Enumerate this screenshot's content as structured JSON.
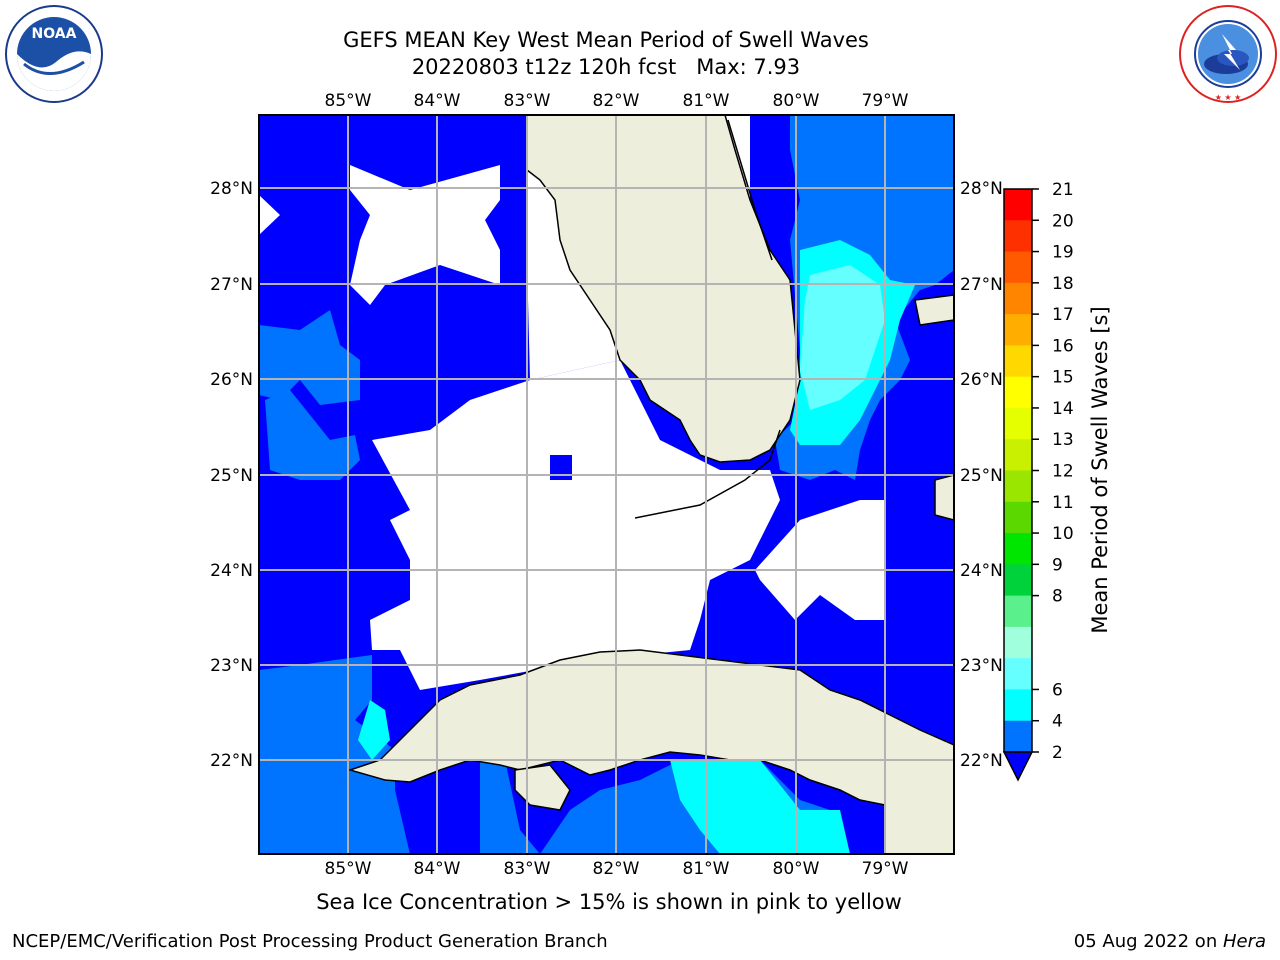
{
  "header": {
    "title_line1": "GEFS MEAN Key West Mean Period of Swell Waves",
    "title_line2": "20220803 t12z 120h fcst   Max: 7.93"
  },
  "logos": {
    "noaa_text": "NOAA",
    "noaa_ring_text": "NATIONAL OCEANIC AND ATMOSPHERIC ADMINISTRATION · U.S. DEPARTMENT OF COMMERCE",
    "nws_ring_text": "NATIONAL WEATHER SERVICE"
  },
  "map": {
    "lon_labels": [
      "85°W",
      "84°W",
      "83°W",
      "82°W",
      "81°W",
      "80°W",
      "79°W"
    ],
    "lat_labels": [
      "28°N",
      "27°N",
      "26°N",
      "25°N",
      "24°N",
      "23°N",
      "22°N"
    ],
    "land_color": "#eeeedd",
    "ocean_colors": {
      "band_2_4": "#0000ff",
      "band_4_6": "#0073ff",
      "band_6_8": "#00ffff",
      "band_8_9": "#66ffff"
    }
  },
  "colorbar": {
    "label": "Mean Period of Swell Waves [s]",
    "ticks": [
      "21",
      "20",
      "19",
      "18",
      "17",
      "16",
      "15",
      "14",
      "13",
      "12",
      "11",
      "10",
      "9",
      "8",
      "6",
      "4",
      "2"
    ],
    "colors": [
      "#ff0000",
      "#ff3000",
      "#ff5a00",
      "#ff8400",
      "#ffae00",
      "#ffd800",
      "#ffff00",
      "#e6ff00",
      "#c8f000",
      "#9be600",
      "#5ad800",
      "#00e600",
      "#00d23c",
      "#5af08c",
      "#a0ffdc",
      "#66ffff",
      "#00ffff",
      "#0073ff"
    ],
    "extend_color": "#0000ff"
  },
  "note": "Sea Ice Concentration > 15% is shown in pink to yellow",
  "footer": {
    "left": "NCEP/EMC/Verification Post Processing Product Generation Branch",
    "date": "05 Aug 2022 on ",
    "host": "Hera"
  }
}
